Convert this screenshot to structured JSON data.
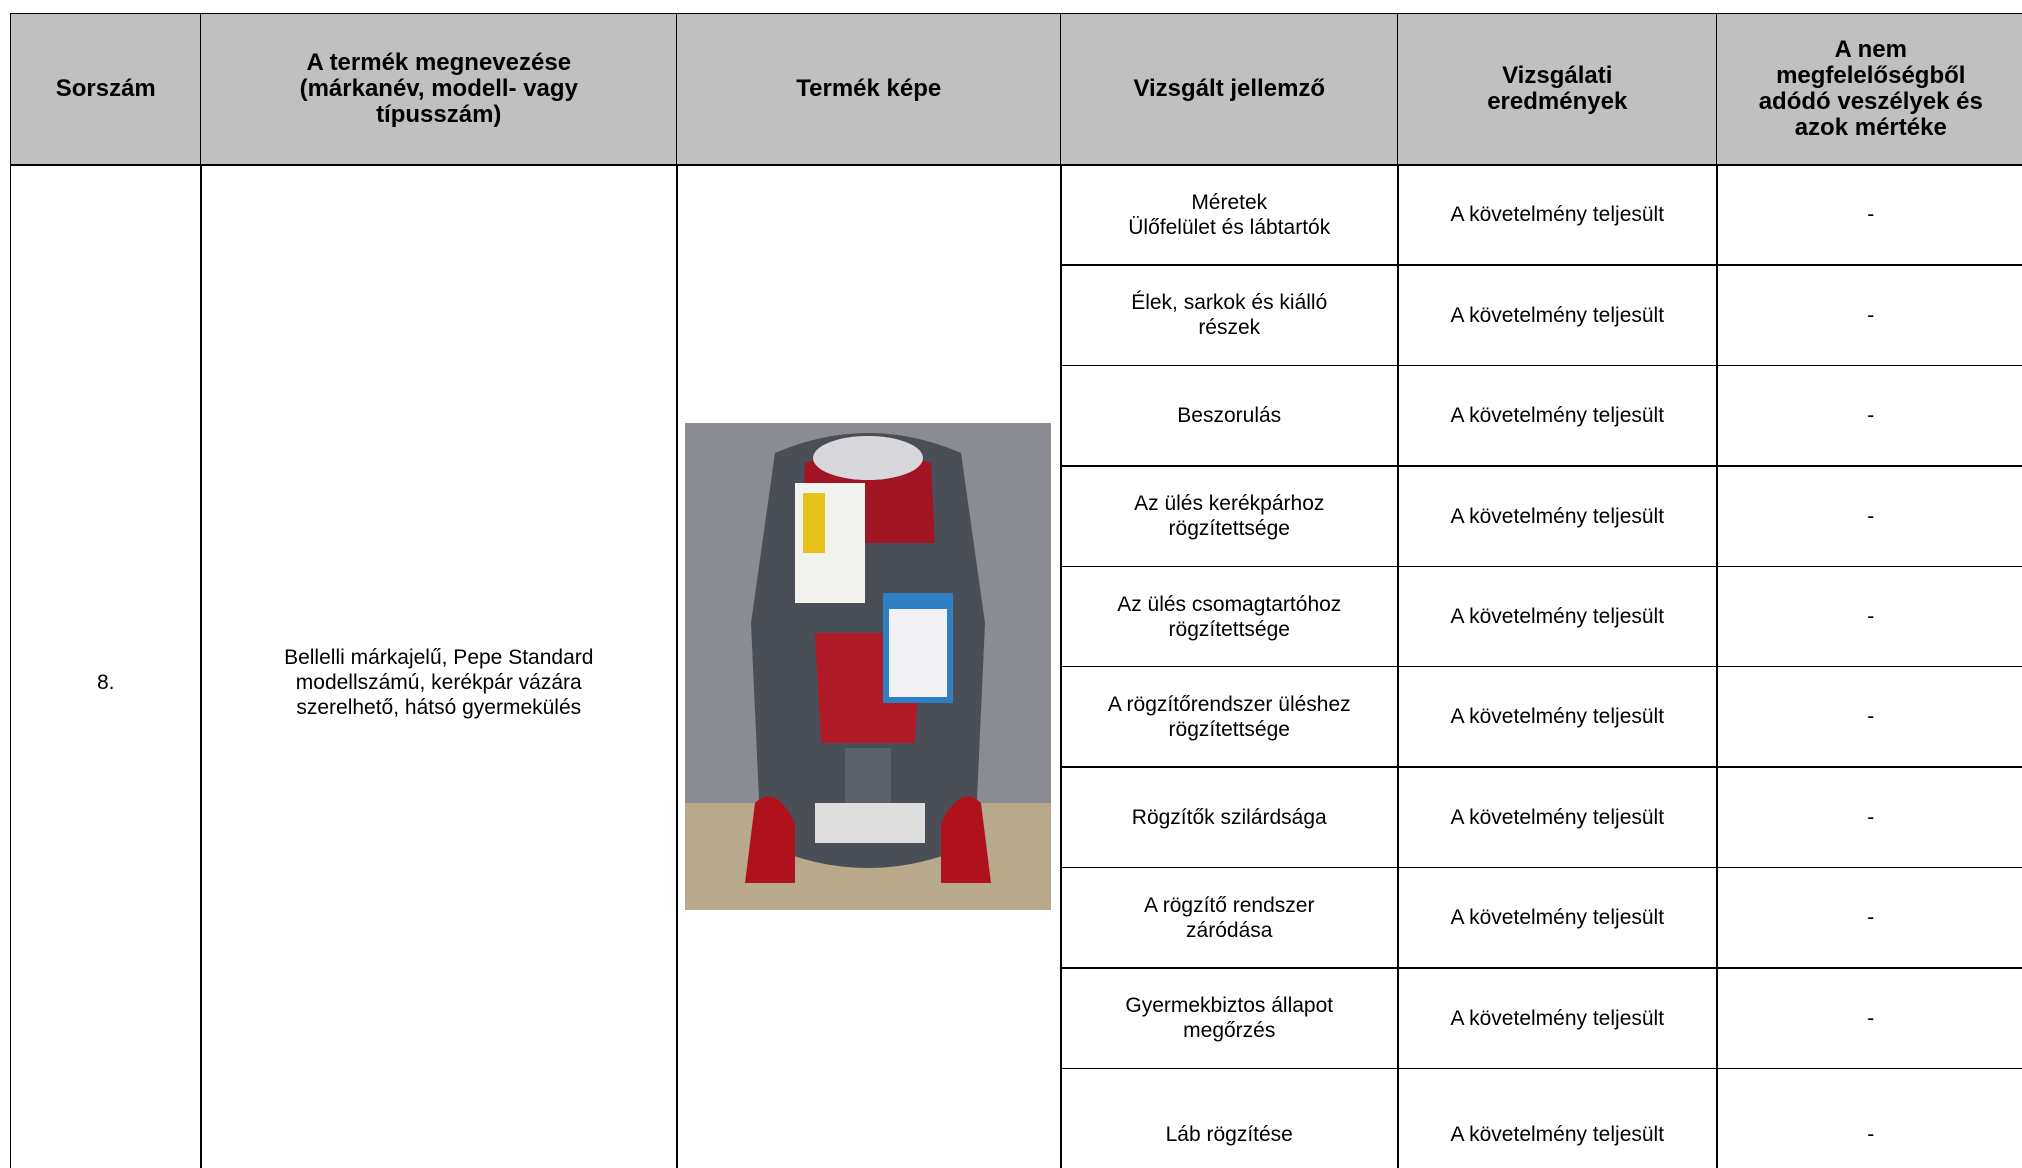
{
  "table": {
    "header": [
      [
        "Sorszám"
      ],
      [
        "A termék megnevezése",
        "(márkanév, modell- vagy",
        "típusszám)"
      ],
      [
        "Termék képe"
      ],
      [
        "Vizsgált jellemző"
      ],
      [
        "Vizsgálati",
        "eredmények"
      ],
      [
        "A nem",
        "megfelelőségből",
        "adódó veszélyek és",
        "azok mértéke"
      ]
    ],
    "number": "8.",
    "product": [
      "Bellelli márkajelű, Pepe Standard",
      "modellszámú, kerékpár vázára",
      "szerelhető, hátsó gyermekülés"
    ],
    "rows": [
      {
        "feature": [
          "Méretek",
          "Ülőfelület és lábtartók"
        ],
        "result": "A követelmény teljesült",
        "hazard": "-"
      },
      {
        "feature": [
          "Élek, sarkok és kiálló",
          "részek"
        ],
        "result": "A követelmény teljesült",
        "hazard": "-"
      },
      {
        "feature": [
          "Beszorulás"
        ],
        "result": "A követelmény teljesült",
        "hazard": "-"
      },
      {
        "feature": [
          "Az ülés kerékpárhoz",
          "rögzítettsége"
        ],
        "result": "A követelmény teljesült",
        "hazard": "-"
      },
      {
        "feature": [
          "Az ülés csomagtartóhoz",
          "rögzítettsége"
        ],
        "result": "A követelmény teljesült",
        "hazard": "-"
      },
      {
        "feature": [
          "A rögzítőrendszer üléshez",
          "rögzítettsége"
        ],
        "result": "A követelmény teljesült",
        "hazard": "-"
      },
      {
        "feature": [
          "Rögzítők szilárdsága"
        ],
        "result": "A követelmény teljesült",
        "hazard": "-"
      },
      {
        "feature": [
          "A rögzítő rendszer",
          "záródása"
        ],
        "result": "A követelmény teljesült",
        "hazard": "-"
      },
      {
        "feature": [
          "Gyermekbiztos állapot",
          "megőrzés"
        ],
        "result": "A követelmény teljesült",
        "hazard": "-"
      },
      {
        "feature": [
          "Láb rögzítése"
        ],
        "result": "A követelmény teljesült",
        "hazard": "-"
      }
    ]
  }
}
